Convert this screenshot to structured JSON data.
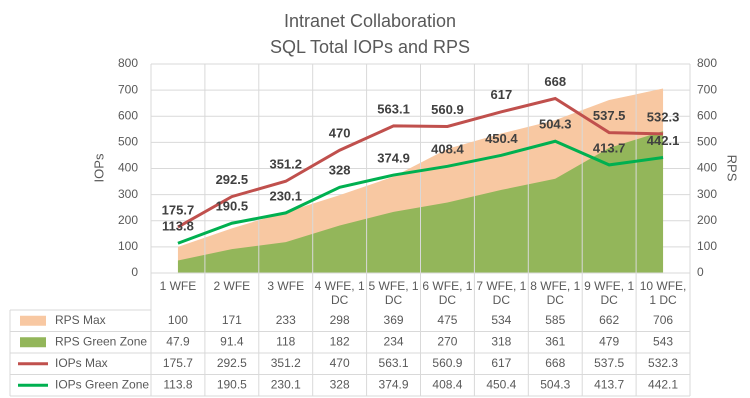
{
  "chart_data": {
    "type": "combo",
    "title": "Intranet Collaboration",
    "subtitle": "SQL Total IOPs and RPS",
    "y_label": "IOPs",
    "y2_label": "RPS",
    "categories": [
      "1 WFE",
      "2 WFE",
      "3 WFE",
      "4 WFE, 1 DC",
      "5 WFE, 1 DC",
      "6 WFE, 1 DC",
      "7 WFE, 1 DC",
      "8 WFE, 1 DC",
      "9 WFE, 1 DC",
      "10 WFE, 1 DC"
    ],
    "ylim": [
      0,
      800
    ],
    "yticks": [
      0,
      100,
      200,
      300,
      400,
      500,
      600,
      700,
      800
    ],
    "y2lim": [
      0,
      800
    ],
    "y2ticks": [
      0,
      100,
      200,
      300,
      400,
      500,
      600,
      700,
      800
    ],
    "grid": true,
    "data_table": true,
    "data_labels_on": "line",
    "series": [
      {
        "name": "RPS Max",
        "type": "area",
        "axis": "y2",
        "color": "#f8c8a2",
        "values": [
          100,
          171,
          233,
          298,
          369,
          475,
          534,
          585,
          662,
          706
        ]
      },
      {
        "name": "RPS Green Zone",
        "type": "area",
        "axis": "y2",
        "color": "#93b65a",
        "values": [
          47.9,
          91.4,
          118,
          182,
          234,
          270,
          318,
          361,
          479,
          543
        ]
      },
      {
        "name": "IOPs Max",
        "type": "line",
        "color": "#c0504d",
        "values": [
          175.7,
          292.5,
          351.2,
          470,
          563.1,
          560.9,
          617,
          668,
          537.5,
          532.3
        ]
      },
      {
        "name": "IOPs Green Zone",
        "type": "line",
        "color": "#00b050",
        "values": [
          113.8,
          190.5,
          230.1,
          328,
          374.9,
          408.4,
          450.4,
          504.3,
          413.7,
          442.1
        ]
      }
    ]
  }
}
